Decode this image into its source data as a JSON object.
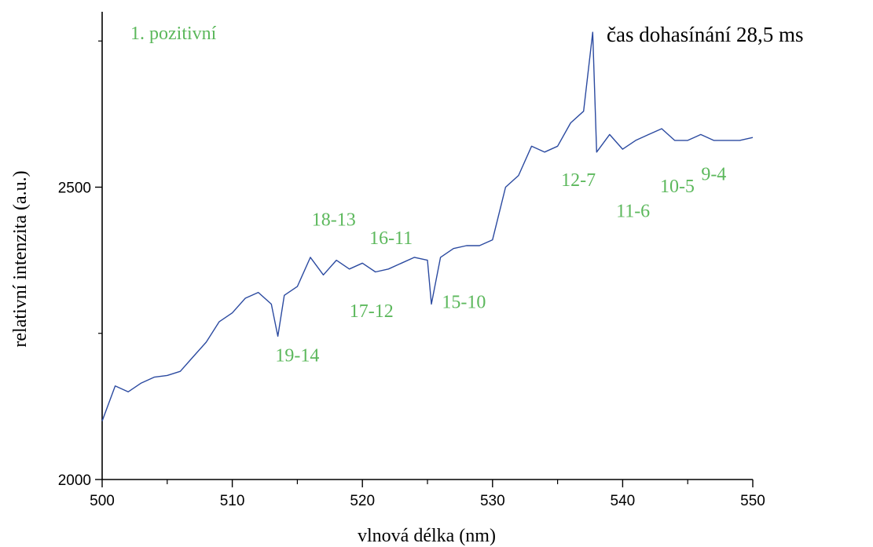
{
  "chart_data": {
    "type": "line",
    "title": "čas dohasínání 28,5 ms",
    "subtitle": "1. pozitivní",
    "xlabel": "vlnová délka (nm)",
    "ylabel": "relativní intenzita (a.u.)",
    "xlim": [
      500,
      550
    ],
    "ylim": [
      2000,
      2800
    ],
    "x_ticks": [
      500,
      510,
      520,
      530,
      540,
      550
    ],
    "x_tick_labels": [
      "500",
      "510",
      "520",
      "530",
      "540",
      "550"
    ],
    "y_ticks": [
      2000,
      2500
    ],
    "y_tick_labels": [
      "2000",
      "2500"
    ],
    "grid": false,
    "line_color": "#2b4aa0",
    "annotation_color": "#5cb85c",
    "series": [
      {
        "x": [
          500,
          501,
          502,
          503,
          504,
          505,
          506,
          507,
          508,
          509,
          510,
          511,
          512,
          513,
          513.5,
          514,
          515,
          516,
          517,
          518,
          519,
          520,
          521,
          522,
          523,
          524,
          525,
          525.3,
          526,
          527,
          528,
          529,
          530,
          531,
          532,
          533,
          534,
          535,
          536,
          537,
          537.7,
          538,
          539,
          540,
          541,
          542,
          543,
          544,
          545,
          546,
          547,
          548,
          549,
          550
        ],
        "y": [
          2100,
          2160,
          2150,
          2165,
          2175,
          2178,
          2185,
          2210,
          2235,
          2270,
          2285,
          2310,
          2320,
          2300,
          2245,
          2315,
          2330,
          2380,
          2350,
          2375,
          2360,
          2370,
          2355,
          2360,
          2370,
          2380,
          2375,
          2300,
          2380,
          2395,
          2400,
          2400,
          2410,
          2500,
          2520,
          2570,
          2560,
          2570,
          2610,
          2630,
          2765,
          2560,
          2590,
          2565,
          2580,
          2590,
          2600,
          2580,
          2580,
          2590,
          2580,
          2580,
          2580,
          2585
        ]
      }
    ],
    "annotations": [
      {
        "text": "19-14",
        "x": 515,
        "y": 2202
      },
      {
        "text": "18-13",
        "x": 517.8,
        "y": 2434
      },
      {
        "text": "17-12",
        "x": 520.7,
        "y": 2278
      },
      {
        "text": "16-11",
        "x": 522.2,
        "y": 2403
      },
      {
        "text": "15-10",
        "x": 527.8,
        "y": 2293
      },
      {
        "text": "12-7",
        "x": 536.6,
        "y": 2502
      },
      {
        "text": "11-6",
        "x": 540.8,
        "y": 2449
      },
      {
        "text": "10-5",
        "x": 544.2,
        "y": 2491
      },
      {
        "text": "9-4",
        "x": 547,
        "y": 2512
      }
    ]
  }
}
